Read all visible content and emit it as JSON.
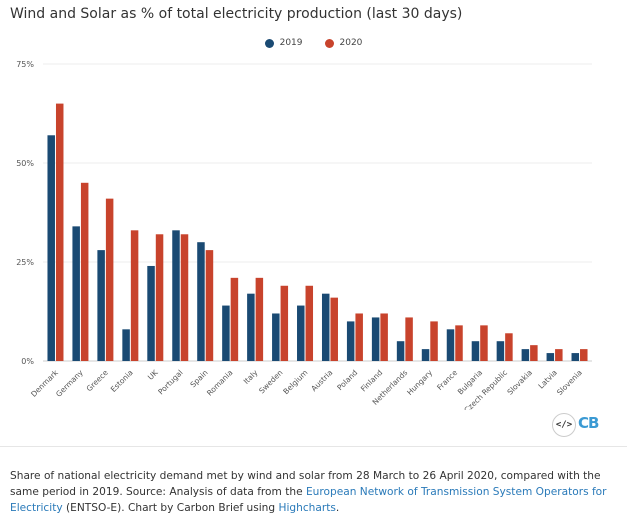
{
  "title": "Wind and Solar as % of total electricity production (last 30 days)",
  "colors": {
    "series_2019": "#1a4a73",
    "series_2020": "#c8432c",
    "link": "#2a7ab9",
    "logo": "#3b9ad3"
  },
  "embed_icon": "</>",
  "logo_text": "CB",
  "caption": {
    "text1": "Share of national electricity demand met by wind and solar from 28 March to 26 April 2020, compared with the same period in 2019. Source: Analysis of data from the ",
    "link1": "European Network of Transmission System Operators for Electricity",
    "text2": " (ENTSO-E). Chart by Carbon Brief using ",
    "link2": "Highcharts",
    "text3": "."
  },
  "chart_data": {
    "type": "bar",
    "title": "Wind and Solar as % of total electricity production (last 30 days)",
    "categories": [
      "Denmark",
      "Germany",
      "Greece",
      "Estonia",
      "UK",
      "Portugal",
      "Spain",
      "Romania",
      "Italy",
      "Sweden",
      "Belgium",
      "Austria",
      "Poland",
      "Finland",
      "Netherlands",
      "Hungary",
      "France",
      "Bulgaria",
      "Czech Republic",
      "Slovakia",
      "Latvia",
      "Slovenia"
    ],
    "series": [
      {
        "name": "2019",
        "values": [
          57,
          34,
          28,
          8,
          24,
          33,
          30,
          14,
          17,
          12,
          14,
          17,
          10,
          11,
          5,
          3,
          8,
          5,
          5,
          3,
          2,
          2
        ]
      },
      {
        "name": "2020",
        "values": [
          65,
          45,
          41,
          33,
          32,
          32,
          28,
          21,
          21,
          19,
          19,
          16,
          12,
          12,
          11,
          10,
          9,
          9,
          7,
          4,
          3,
          3
        ]
      }
    ],
    "yticks": [
      "0%",
      "25%",
      "50%",
      "75%"
    ],
    "ylim": [
      0,
      75
    ],
    "grid": true,
    "legend_position": "top-center"
  }
}
